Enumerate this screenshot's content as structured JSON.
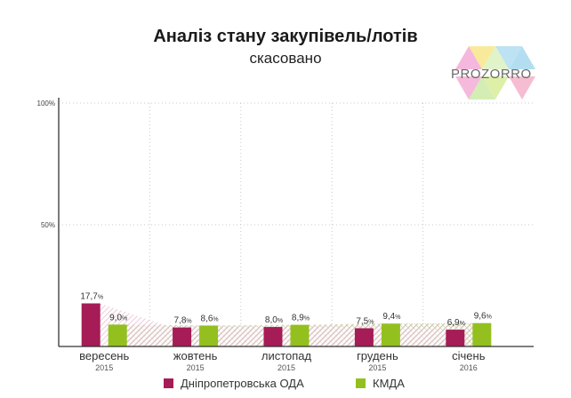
{
  "logo": {
    "text": "PROZORRO"
  },
  "colors": {
    "series1": "#a51c56",
    "series2": "#93c01f",
    "axis": "#333333",
    "grid": "#c8c8c8"
  },
  "chart_data": {
    "type": "bar",
    "title": "Аналіз стану закупівель/лотів",
    "subtitle": "скасовано",
    "categories": [
      "вересень",
      "жовтень",
      "листопад",
      "грудень",
      "січень"
    ],
    "years": [
      "2015",
      "2015",
      "2015",
      "2015",
      "2016"
    ],
    "ylim": [
      0,
      100
    ],
    "y_ticks": [
      {
        "value": 100,
        "label": "100%"
      },
      {
        "value": 50,
        "label": "50%"
      }
    ],
    "series": [
      {
        "name": "Дніпропетровська ОДА",
        "color": "#a51c56",
        "values": [
          17.7,
          7.8,
          8.0,
          7.5,
          6.9
        ],
        "labels": [
          "17,7",
          "7,8",
          "8,0",
          "7,5",
          "6,9"
        ]
      },
      {
        "name": "КМДА",
        "color": "#93c01f",
        "values": [
          9.0,
          8.6,
          8.9,
          9.4,
          9.6
        ],
        "labels": [
          "9,0",
          "8,6",
          "8,9",
          "9,4",
          "9,6"
        ]
      }
    ],
    "value_suffix": "%",
    "legend_position": "bottom"
  }
}
